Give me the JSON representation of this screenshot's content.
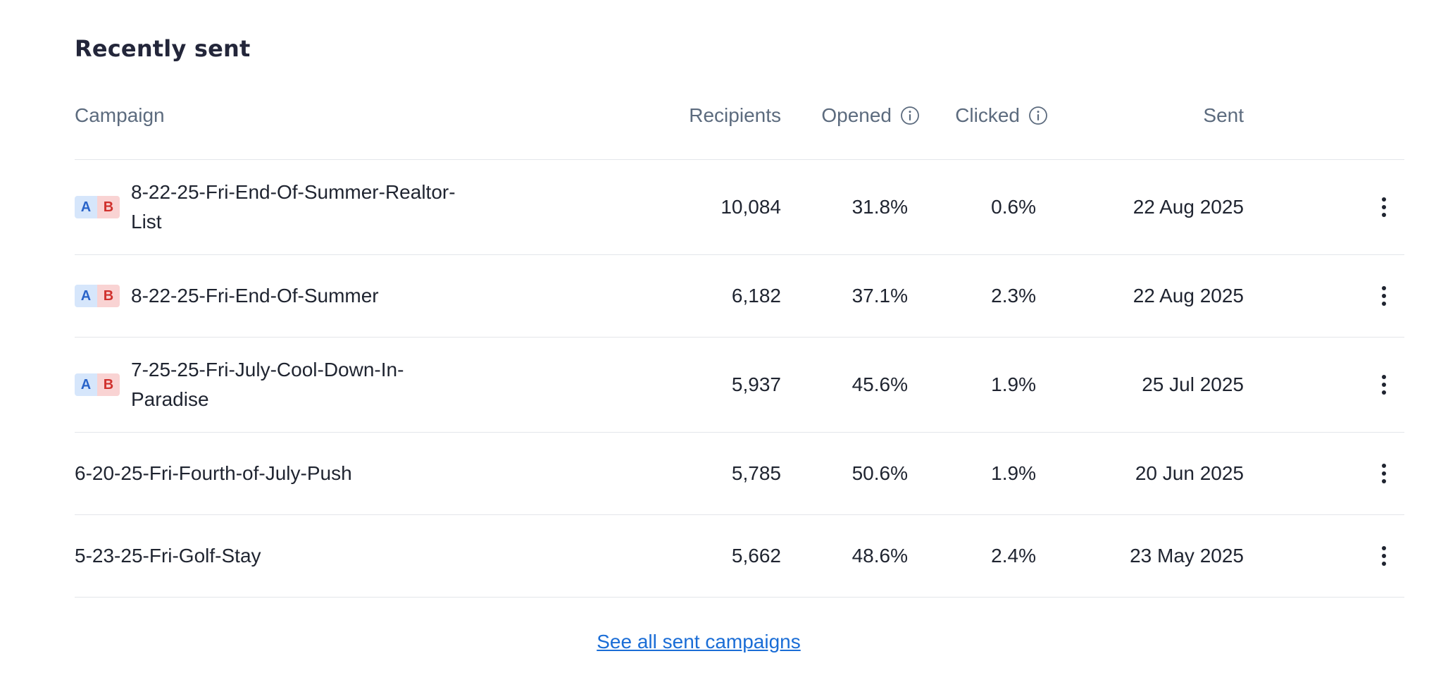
{
  "section": {
    "title": "Recently sent"
  },
  "table": {
    "headers": {
      "campaign": "Campaign",
      "recipients": "Recipients",
      "opened": "Opened",
      "clicked": "Clicked",
      "sent": "Sent"
    },
    "rows": [
      {
        "ab_test": true,
        "badge_a": "A",
        "badge_b": "B",
        "name": "8-22-25-Fri-End-Of-Summer-Realtor-List",
        "recipients": "10,084",
        "opened": "31.8%",
        "clicked": "0.6%",
        "sent": "22 Aug 2025"
      },
      {
        "ab_test": true,
        "badge_a": "A",
        "badge_b": "B",
        "name": "8-22-25-Fri-End-Of-Summer",
        "recipients": "6,182",
        "opened": "37.1%",
        "clicked": "2.3%",
        "sent": "22 Aug 2025"
      },
      {
        "ab_test": true,
        "badge_a": "A",
        "badge_b": "B",
        "name": "7-25-25-Fri-July-Cool-Down-In-Paradise",
        "recipients": "5,937",
        "opened": "45.6%",
        "clicked": "1.9%",
        "sent": "25 Jul 2025"
      },
      {
        "ab_test": false,
        "name": "6-20-25-Fri-Fourth-of-July-Push",
        "recipients": "5,785",
        "opened": "50.6%",
        "clicked": "1.9%",
        "sent": "20 Jun 2025"
      },
      {
        "ab_test": false,
        "name": "5-23-25-Fri-Golf-Stay",
        "recipients": "5,662",
        "opened": "48.6%",
        "clicked": "2.4%",
        "sent": "23 May 2025"
      }
    ]
  },
  "footer": {
    "see_all_label": "See all sent campaigns"
  },
  "icons": {
    "info": "info-icon",
    "menu": "more-vertical-icon"
  },
  "colors": {
    "link": "#1a6dd6",
    "badge_a_bg": "#d6e6fb",
    "badge_a_text": "#2a64c9",
    "badge_b_bg": "#f9d3d3",
    "badge_b_text": "#d0312d",
    "header_text": "#5c6b7e",
    "divider": "#e3e6ea"
  }
}
